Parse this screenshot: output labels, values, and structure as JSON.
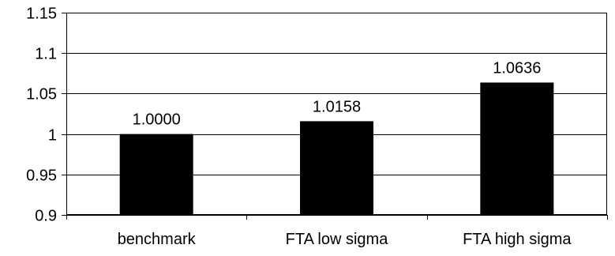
{
  "chart_data": {
    "type": "bar",
    "title": "",
    "xlabel": "",
    "ylabel": "",
    "categories": [
      "benchmark",
      "FTA low sigma",
      "FTA high sigma"
    ],
    "values": [
      1.0,
      1.0158,
      1.0636
    ],
    "data_labels": [
      "1.0000",
      "1.0158",
      "1.0636"
    ],
    "ylim": [
      0.9,
      1.15
    ],
    "yticks": [
      0.9,
      0.95,
      1,
      1.05,
      1.1,
      1.15
    ],
    "ytick_labels": [
      "0.9",
      "0.95",
      "1",
      "1.05",
      "1.1",
      "1.15"
    ],
    "grid": "horizontal",
    "legend": "none",
    "bar_color": "#000000",
    "gridline_color": "#000000"
  }
}
